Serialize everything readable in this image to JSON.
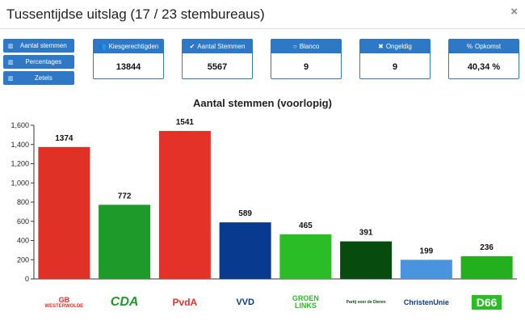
{
  "header": {
    "title": "Tussentijdse uitslag (17 / 23 stembureaus)",
    "close_glyph": "×"
  },
  "side_buttons": [
    {
      "label": "Aantal stemmen",
      "icon": "bar-chart-icon"
    },
    {
      "label": "Percentages",
      "icon": "bar-chart-icon"
    },
    {
      "label": "Zetels",
      "icon": "bar-chart-icon"
    }
  ],
  "stats": [
    {
      "label": "Kiesgerechtigden",
      "icon": "users-icon",
      "glyph": "👥",
      "value": "13844"
    },
    {
      "label": "Aantal Stemmen",
      "icon": "check-icon",
      "glyph": "✔",
      "value": "5567"
    },
    {
      "label": "Blanco",
      "icon": "circle-icon",
      "glyph": "○",
      "value": "9"
    },
    {
      "label": "Ongeldig",
      "icon": "times-icon",
      "glyph": "✖",
      "value": "9"
    },
    {
      "label": "Opkomst",
      "icon": "percent-icon",
      "glyph": "%",
      "value": "40,34 %"
    }
  ],
  "chart_data": {
    "type": "bar",
    "title": "Aantal stemmen (voorlopig)",
    "categories": [
      "Gemeentebelangen Westerwolde",
      "CDA",
      "PvdA",
      "VVD",
      "GroenLinks",
      "Partij voor de Dieren",
      "ChristenUnie",
      "D66"
    ],
    "values": [
      1374,
      772,
      1541,
      589,
      465,
      391,
      199,
      236
    ],
    "data_labels": [
      "1374",
      "772",
      "1541",
      "589",
      "465",
      "391",
      "199",
      "236"
    ],
    "colors": [
      "#e03127",
      "#1d9a29",
      "#e53229",
      "#083b8f",
      "#2bbd25",
      "#074b0e",
      "#4a93de",
      "#24b01e"
    ],
    "ylim": [
      0,
      1600
    ],
    "yticks": [
      0,
      200,
      400,
      600,
      800,
      1000,
      1200,
      1400,
      1600
    ],
    "ytick_labels": [
      "0",
      "200",
      "400",
      "600",
      "800",
      "1,000",
      "1,200",
      "1,400",
      "1,600"
    ],
    "grid": false,
    "legend": "none"
  },
  "logos": [
    {
      "top": "GB",
      "bottom": "WESTERWOLDE"
    },
    {
      "top": "CDA"
    },
    {
      "top": "PvdA"
    },
    {
      "top": "VVD"
    },
    {
      "top": "GROEN",
      "bottom": "LINKS"
    },
    {
      "top": "Partij voor de Dieren"
    },
    {
      "top": "ChristenUnie"
    },
    {
      "top": "D66"
    }
  ]
}
